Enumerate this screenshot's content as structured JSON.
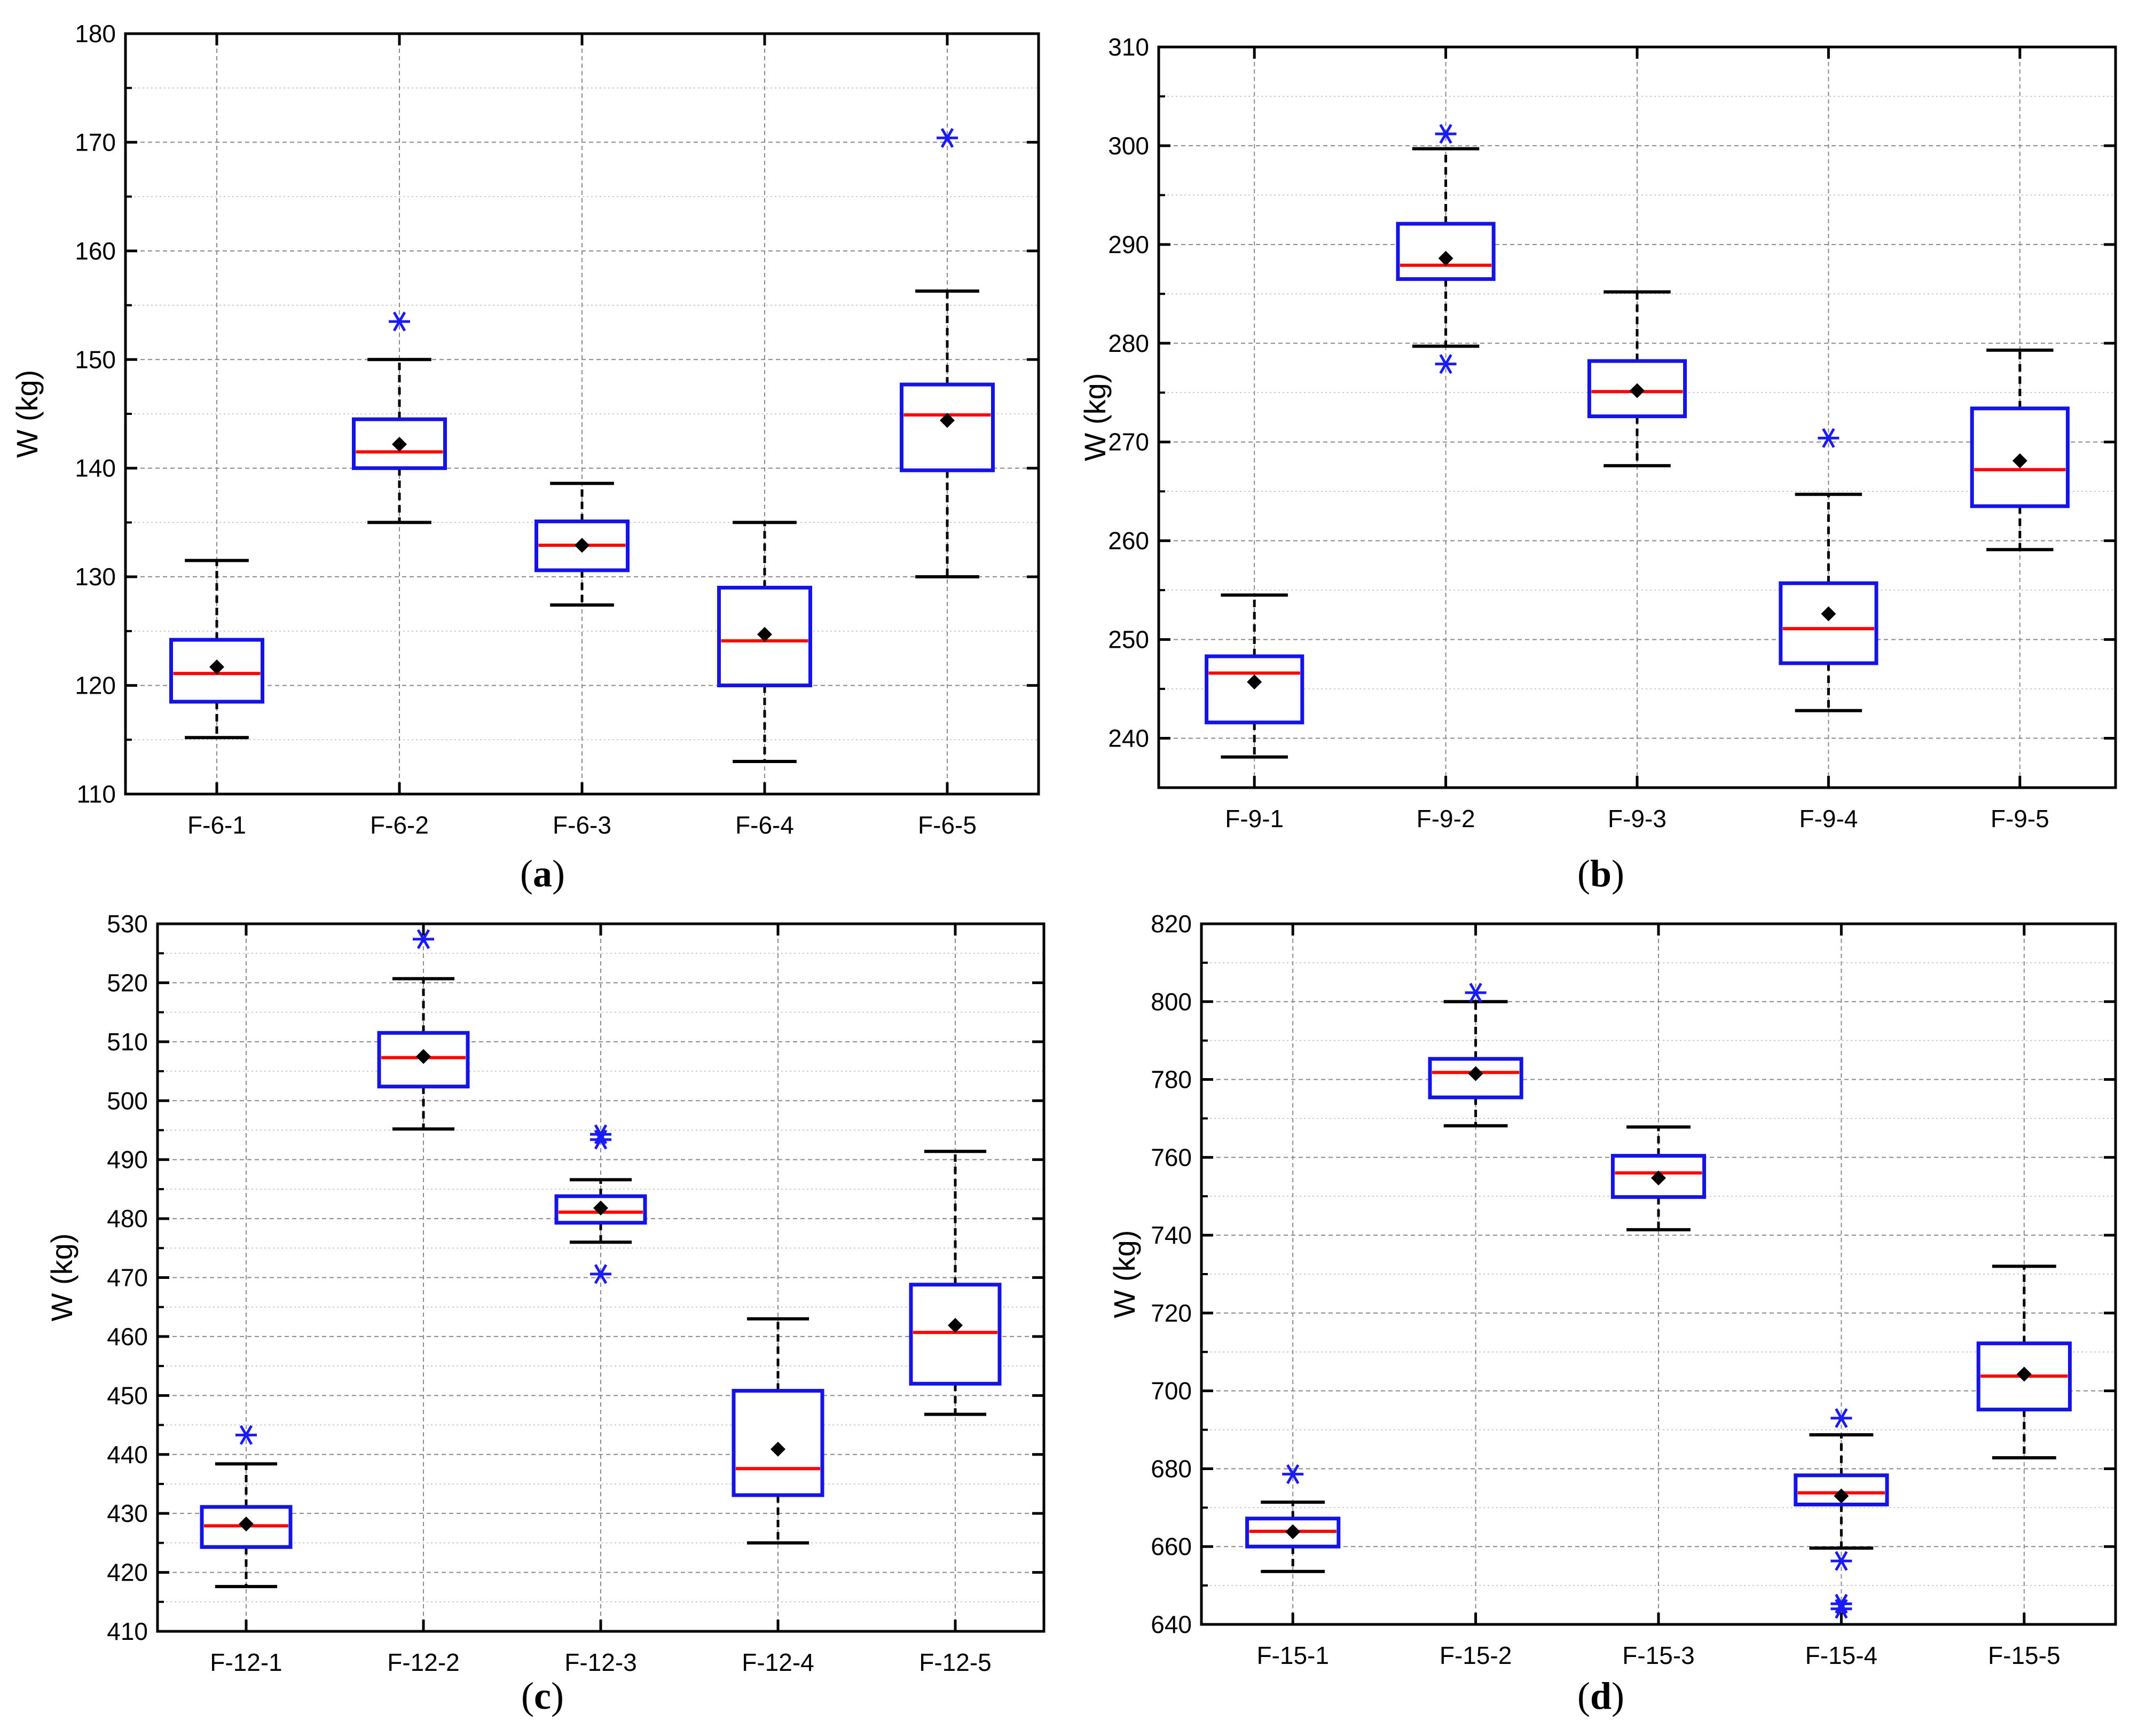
{
  "chart_data": [
    {
      "panel": "a",
      "type": "boxplot",
      "caption_letter": "a",
      "ylabel": "W (kg)",
      "xlabel": "",
      "ylim": [
        110,
        180
      ],
      "yticks": [
        110,
        120,
        130,
        140,
        150,
        160,
        170,
        180
      ],
      "ytick_labels": [
        "110",
        "120",
        "130",
        "140",
        "150",
        "160",
        "170",
        "180"
      ],
      "categories": [
        "F-6-1",
        "F-6-2",
        "F-6-3",
        "F-6-4",
        "F-6-5"
      ],
      "boxes": [
        {
          "whisker_low": 115.2,
          "q1": 118.5,
          "median": 121.1,
          "q3": 124.2,
          "whisker_high": 131.5,
          "mean": 121.7,
          "outliers": []
        },
        {
          "whisker_low": 135.0,
          "q1": 140.0,
          "median": 141.5,
          "q3": 144.5,
          "whisker_high": 150.0,
          "mean": 142.2,
          "outliers": [
            153.5
          ]
        },
        {
          "whisker_low": 127.4,
          "q1": 130.6,
          "median": 132.9,
          "q3": 135.1,
          "whisker_high": 138.6,
          "mean": 132.9,
          "outliers": []
        },
        {
          "whisker_low": 113.0,
          "q1": 120.0,
          "median": 124.1,
          "q3": 129.0,
          "whisker_high": 135.0,
          "mean": 124.7,
          "outliers": []
        },
        {
          "whisker_low": 130.0,
          "q1": 139.8,
          "median": 144.9,
          "q3": 147.7,
          "whisker_high": 156.3,
          "mean": 144.4,
          "outliers": [
            170.4
          ]
        }
      ]
    },
    {
      "panel": "b",
      "type": "boxplot",
      "caption_letter": "b",
      "ylabel": "W (kg)",
      "xlabel": "",
      "ylim": [
        235,
        310
      ],
      "yticks": [
        240,
        250,
        260,
        270,
        280,
        290,
        300,
        310
      ],
      "ytick_labels": [
        "240",
        "250",
        "260",
        "270",
        "280",
        "290",
        "300",
        "310"
      ],
      "categories": [
        "F-9-1",
        "F-9-2",
        "F-9-3",
        "F-9-4",
        "F-9-5"
      ],
      "boxes": [
        {
          "whisker_low": 238.1,
          "q1": 241.6,
          "median": 246.6,
          "q3": 248.3,
          "whisker_high": 254.5,
          "mean": 245.7,
          "outliers": []
        },
        {
          "whisker_low": 279.7,
          "q1": 286.5,
          "median": 287.9,
          "q3": 292.1,
          "whisker_high": 299.7,
          "mean": 288.6,
          "outliers": [
            301.2,
            277.9
          ]
        },
        {
          "whisker_low": 267.6,
          "q1": 272.6,
          "median": 275.1,
          "q3": 278.2,
          "whisker_high": 285.2,
          "mean": 275.2,
          "outliers": []
        },
        {
          "whisker_low": 242.8,
          "q1": 247.6,
          "median": 251.1,
          "q3": 255.7,
          "whisker_high": 264.7,
          "mean": 252.6,
          "outliers": [
            270.4
          ]
        },
        {
          "whisker_low": 259.1,
          "q1": 263.5,
          "median": 267.2,
          "q3": 273.4,
          "whisker_high": 279.3,
          "mean": 268.1,
          "outliers": []
        }
      ]
    },
    {
      "panel": "c",
      "type": "boxplot",
      "caption_letter": "c",
      "ylabel": "W (kg)",
      "xlabel": "",
      "ylim": [
        410,
        530
      ],
      "yticks": [
        410,
        420,
        430,
        440,
        450,
        460,
        470,
        480,
        490,
        500,
        510,
        520,
        530
      ],
      "ytick_labels": [
        "410",
        "420",
        "430",
        "440",
        "450",
        "460",
        "470",
        "480",
        "490",
        "500",
        "510",
        "520",
        "530"
      ],
      "categories": [
        "F-12-1",
        "F-12-2",
        "F-12-3",
        "F-12-4",
        "F-12-5"
      ],
      "boxes": [
        {
          "whisker_low": 417.6,
          "q1": 424.3,
          "median": 427.9,
          "q3": 431.1,
          "whisker_high": 438.4,
          "mean": 428.2,
          "outliers": [
            443.3
          ]
        },
        {
          "whisker_low": 495.2,
          "q1": 502.4,
          "median": 507.3,
          "q3": 511.5,
          "whisker_high": 520.7,
          "mean": 507.5,
          "outliers": [
            527.4
          ]
        },
        {
          "whisker_low": 476.0,
          "q1": 479.3,
          "median": 481.1,
          "q3": 483.8,
          "whisker_high": 486.6,
          "mean": 481.8,
          "outliers": [
            494.3,
            493.4,
            470.6
          ]
        },
        {
          "whisker_low": 425.0,
          "q1": 433.1,
          "median": 437.6,
          "q3": 450.8,
          "whisker_high": 463.0,
          "mean": 440.9,
          "outliers": []
        },
        {
          "whisker_low": 446.8,
          "q1": 452.0,
          "median": 460.7,
          "q3": 468.8,
          "whisker_high": 491.4,
          "mean": 461.9,
          "outliers": []
        }
      ]
    },
    {
      "panel": "d",
      "type": "boxplot",
      "caption_letter": "d",
      "ylabel": "W (kg)",
      "xlabel": "",
      "ylim": [
        640,
        820
      ],
      "yticks": [
        640,
        660,
        680,
        700,
        720,
        740,
        760,
        780,
        800,
        820
      ],
      "ytick_labels": [
        "640",
        "660",
        "680",
        "700",
        "720",
        "740",
        "760",
        "780",
        "800",
        "820"
      ],
      "categories": [
        "F-15-1",
        "F-15-2",
        "F-15-3",
        "F-15-4",
        "F-15-5"
      ],
      "boxes": [
        {
          "whisker_low": 653.6,
          "q1": 660.0,
          "median": 663.9,
          "q3": 667.2,
          "whisker_high": 671.4,
          "mean": 663.8,
          "outliers": [
            678.6
          ]
        },
        {
          "whisker_low": 768.1,
          "q1": 775.4,
          "median": 781.8,
          "q3": 785.3,
          "whisker_high": 800.0,
          "mean": 781.5,
          "outliers": [
            802.3
          ]
        },
        {
          "whisker_low": 741.4,
          "q1": 749.8,
          "median": 756.0,
          "q3": 760.4,
          "whisker_high": 767.8,
          "mean": 754.7,
          "outliers": []
        },
        {
          "whisker_low": 659.6,
          "q1": 670.8,
          "median": 673.8,
          "q3": 678.3,
          "whisker_high": 688.7,
          "mean": 673.0,
          "outliers": [
            693.0,
            656.3,
            645.3,
            644.0
          ]
        },
        {
          "whisker_low": 682.8,
          "q1": 695.2,
          "median": 703.8,
          "q3": 712.2,
          "whisker_high": 732.0,
          "mean": 704.3,
          "outliers": []
        }
      ]
    }
  ]
}
